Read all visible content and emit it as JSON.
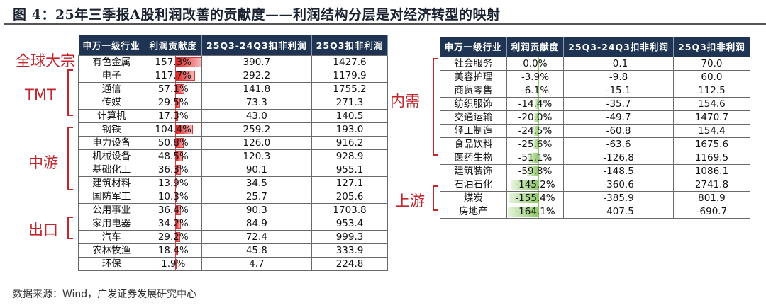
{
  "title": "图 4：25年三季报A股利润改善的贡献度——利润结构分层是对经济转型的映射",
  "source": "数据来源：Wind，广发证券发展研究中心",
  "colors": {
    "header_bg": "#1f3452",
    "positive_bar": "#e02020",
    "negative_bar": "#8fc86a",
    "group_label": "#c0262c"
  },
  "headers": [
    "申万一级行业",
    "利润贡献度",
    "25Q3-24Q3扣非利润",
    "25Q3扣非利润"
  ],
  "left_groups": [
    {
      "label": "全球大宗"
    },
    {
      "label": "TMT"
    },
    {
      "label": "中游"
    },
    {
      "label": "出口"
    }
  ],
  "right_groups": [
    {
      "label": "内需"
    },
    {
      "label": "上游"
    }
  ],
  "left_rows": [
    {
      "industry": "有色金属",
      "contribution": "157.3%",
      "delta": "390.7",
      "profit": "1427.6"
    },
    {
      "industry": "电子",
      "contribution": "117.7%",
      "delta": "292.2",
      "profit": "1179.9"
    },
    {
      "industry": "通信",
      "contribution": "57.1%",
      "delta": "141.8",
      "profit": "1755.2"
    },
    {
      "industry": "传媒",
      "contribution": "29.5%",
      "delta": "73.3",
      "profit": "271.3"
    },
    {
      "industry": "计算机",
      "contribution": "17.3%",
      "delta": "43.0",
      "profit": "140.5"
    },
    {
      "industry": "钢铁",
      "contribution": "104.4%",
      "delta": "259.2",
      "profit": "193.0"
    },
    {
      "industry": "电力设备",
      "contribution": "50.8%",
      "delta": "126.0",
      "profit": "916.2"
    },
    {
      "industry": "机械设备",
      "contribution": "48.5%",
      "delta": "120.3",
      "profit": "928.9"
    },
    {
      "industry": "基础化工",
      "contribution": "36.3%",
      "delta": "90.1",
      "profit": "955.1"
    },
    {
      "industry": "建筑材料",
      "contribution": "13.9%",
      "delta": "34.5",
      "profit": "127.1"
    },
    {
      "industry": "国防军工",
      "contribution": "10.3%",
      "delta": "25.7",
      "profit": "205.6"
    },
    {
      "industry": "公用事业",
      "contribution": "36.4%",
      "delta": "90.3",
      "profit": "1703.8"
    },
    {
      "industry": "家用电器",
      "contribution": "34.2%",
      "delta": "84.9",
      "profit": "953.4"
    },
    {
      "industry": "汽车",
      "contribution": "29.2%",
      "delta": "72.4",
      "profit": "999.3"
    },
    {
      "industry": "农林牧渔",
      "contribution": "18.4%",
      "delta": "45.8",
      "profit": "333.9"
    },
    {
      "industry": "环保",
      "contribution": "1.9%",
      "delta": "4.7",
      "profit": "224.8"
    }
  ],
  "right_rows": [
    {
      "industry": "社会服务",
      "contribution": "0.0%",
      "delta": "-0.1",
      "profit": "70.0"
    },
    {
      "industry": "美容护理",
      "contribution": "-3.9%",
      "delta": "-9.8",
      "profit": "60.0"
    },
    {
      "industry": "商贸零售",
      "contribution": "-6.1%",
      "delta": "-15.1",
      "profit": "112.5"
    },
    {
      "industry": "纺织服饰",
      "contribution": "-14.4%",
      "delta": "-35.7",
      "profit": "154.6"
    },
    {
      "industry": "交通运输",
      "contribution": "-20.0%",
      "delta": "-49.7",
      "profit": "1470.7"
    },
    {
      "industry": "轻工制造",
      "contribution": "-24.5%",
      "delta": "-60.8",
      "profit": "154.4"
    },
    {
      "industry": "食品饮料",
      "contribution": "-25.6%",
      "delta": "-63.6",
      "profit": "1675.6"
    },
    {
      "industry": "医药生物",
      "contribution": "-51.1%",
      "delta": "-126.8",
      "profit": "1169.5"
    },
    {
      "industry": "建筑装饰",
      "contribution": "-59.8%",
      "delta": "-148.5",
      "profit": "1086.1"
    },
    {
      "industry": "石油石化",
      "contribution": "-145.2%",
      "delta": "-360.6",
      "profit": "2741.8"
    },
    {
      "industry": "煤炭",
      "contribution": "-155.4%",
      "delta": "-385.9",
      "profit": "801.9"
    },
    {
      "industry": "房地产",
      "contribution": "-164.1%",
      "delta": "-407.5",
      "profit": "-690.7"
    }
  ],
  "chart_data": {
    "type": "table",
    "title": "25年三季报A股利润改善的贡献度——利润结构分层是对经济转型的映射",
    "columns": [
      "申万一级行业",
      "利润贡献度(%)",
      "25Q3-24Q3扣非利润",
      "25Q3扣非利润"
    ],
    "categories": [
      "有色金属",
      "电子",
      "通信",
      "传媒",
      "计算机",
      "钢铁",
      "电力设备",
      "机械设备",
      "基础化工",
      "建筑材料",
      "国防军工",
      "公用事业",
      "家用电器",
      "汽车",
      "农林牧渔",
      "环保",
      "社会服务",
      "美容护理",
      "商贸零售",
      "纺织服饰",
      "交通运输",
      "轻工制造",
      "食品饮料",
      "医药生物",
      "建筑装饰",
      "石油石化",
      "煤炭",
      "房地产"
    ],
    "series": [
      {
        "name": "利润贡献度(%)",
        "values": [
          157.3,
          117.7,
          57.1,
          29.5,
          17.3,
          104.4,
          50.8,
          48.5,
          36.3,
          13.9,
          10.3,
          36.4,
          34.2,
          29.2,
          18.4,
          1.9,
          0.0,
          -3.9,
          -6.1,
          -14.4,
          -20.0,
          -24.5,
          -25.6,
          -51.1,
          -59.8,
          -145.2,
          -155.4,
          -164.1
        ]
      },
      {
        "name": "25Q3-24Q3扣非利润",
        "values": [
          390.7,
          292.2,
          141.8,
          73.3,
          43.0,
          259.2,
          126.0,
          120.3,
          90.1,
          34.5,
          25.7,
          90.3,
          84.9,
          72.4,
          45.8,
          4.7,
          -0.1,
          -9.8,
          -15.1,
          -35.7,
          -49.7,
          -60.8,
          -63.6,
          -126.8,
          -148.5,
          -360.6,
          -385.9,
          -407.5
        ]
      },
      {
        "name": "25Q3扣非利润",
        "values": [
          1427.6,
          1179.9,
          1755.2,
          271.3,
          140.5,
          193.0,
          916.2,
          928.9,
          955.1,
          127.1,
          205.6,
          1703.8,
          953.4,
          999.3,
          333.9,
          224.8,
          70.0,
          60.0,
          112.5,
          154.6,
          1470.7,
          154.4,
          1675.6,
          1169.5,
          1086.1,
          2741.8,
          801.9,
          -690.7
        ]
      }
    ],
    "groups": {
      "全球大宗": [
        "有色金属"
      ],
      "TMT": [
        "电子",
        "通信",
        "传媒",
        "计算机"
      ],
      "中游": [
        "钢铁",
        "电力设备",
        "机械设备",
        "基础化工",
        "建筑材料"
      ],
      "出口": [
        "家用电器",
        "汽车"
      ],
      "内需": [
        "社会服务",
        "美容护理",
        "商贸零售",
        "纺织服饰",
        "交通运输",
        "轻工制造",
        "食品饮料"
      ],
      "上游": [
        "石油石化",
        "煤炭"
      ]
    },
    "source": "Wind，广发证券发展研究中心"
  }
}
